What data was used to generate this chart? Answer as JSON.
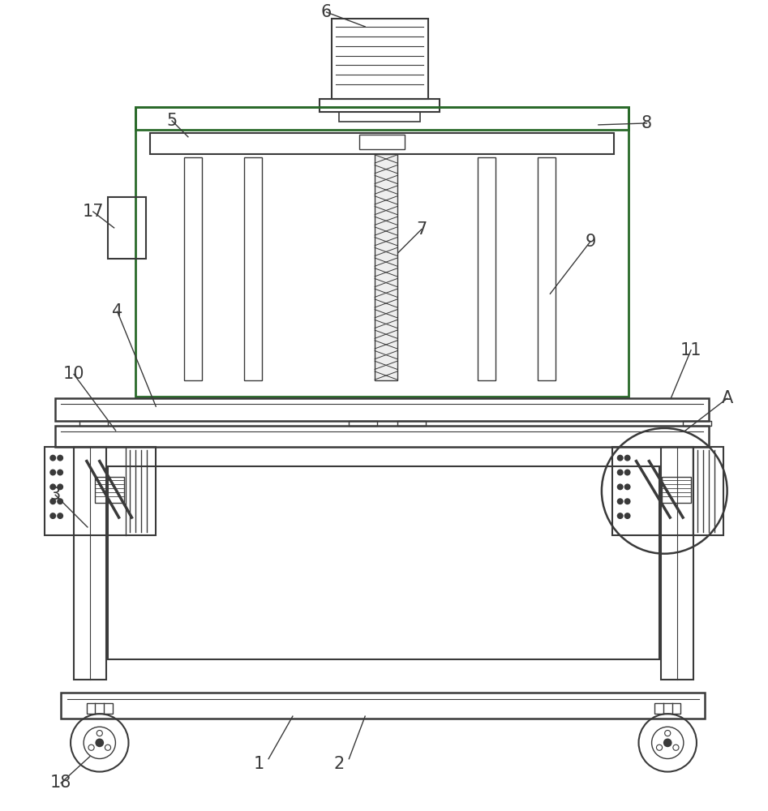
{
  "bg_color": "#ffffff",
  "line_color": "#3a3a3a",
  "green_color": "#2a6a2a",
  "label_color": "#1a1a1a",
  "fig_width": 9.47,
  "fig_height": 10.0
}
